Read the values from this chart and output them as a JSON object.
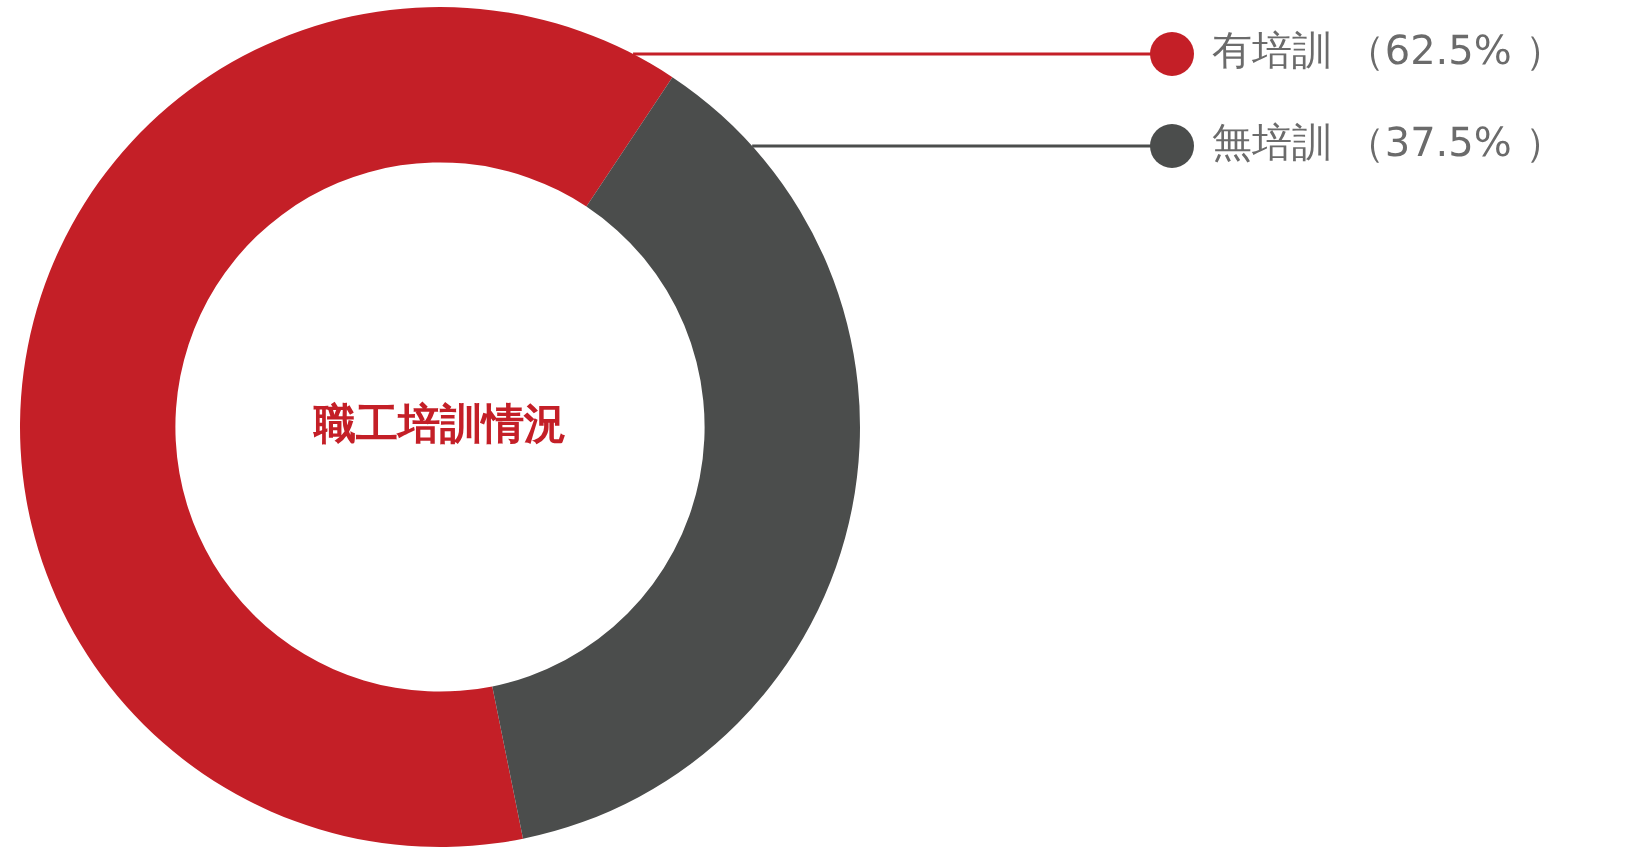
{
  "chart_data": {
    "type": "donut",
    "title": "職工培訓情況",
    "categories": [
      "有培訓",
      "無培訓"
    ],
    "values": [
      62.5,
      37.5
    ],
    "colors": [
      "#c41f27",
      "#4b4d4c"
    ],
    "value_labels": [
      "（62.5% ）",
      "（37.5% ）"
    ],
    "legend": "top right"
  }
}
